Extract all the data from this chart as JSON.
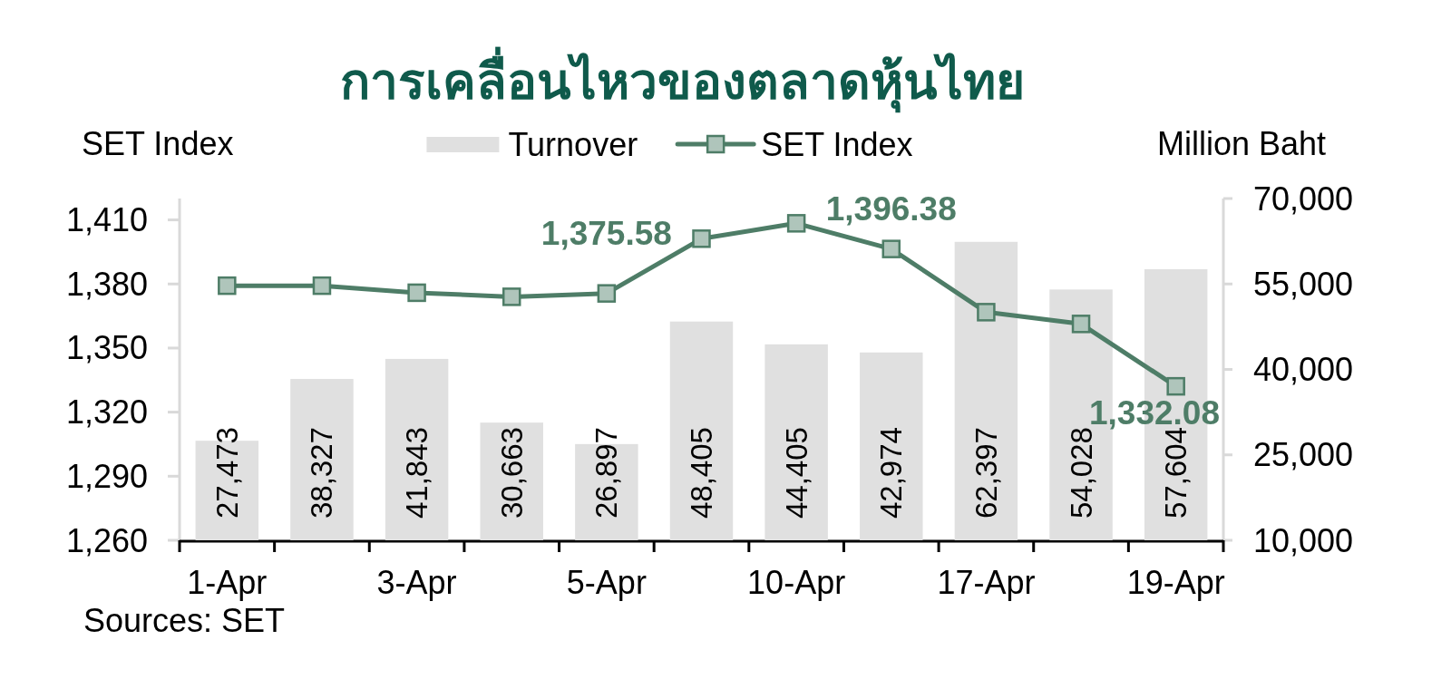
{
  "chart_data": {
    "type": "bar",
    "title": "การเคลื่อนไหวของตลาดหุ้นไทย",
    "ylabel": "SET Index",
    "y2label": "Million Baht",
    "categories": [
      "1-Apr",
      null,
      "3-Apr",
      null,
      "5-Apr",
      null,
      "10-Apr",
      null,
      "17-Apr",
      null,
      "19-Apr"
    ],
    "series": [
      {
        "name": "Turnover",
        "axis": "y2",
        "color": "#e0e0e0",
        "values": [
          27473,
          38327,
          41843,
          30663,
          26897,
          48405,
          44405,
          42974,
          62397,
          54028,
          57604
        ],
        "value_labels": [
          "27,473",
          "38,327",
          "41,843",
          "30,663",
          "26,897",
          "48,405",
          "44,405",
          "42,974",
          "62,397",
          "54,028",
          "57,604"
        ]
      },
      {
        "name": "SET Index",
        "type": "line",
        "axis": "y",
        "color": "#4e7d67",
        "marker": "square",
        "line_style": "solid",
        "values": [
          1379.2,
          1379.2,
          1375.9,
          1374.0,
          1375.58,
          1401.2,
          1408.4,
          1396.38,
          1366.8,
          1361.3,
          1332.08
        ],
        "value_labels": [
          null,
          null,
          null,
          null,
          "1,375.58",
          null,
          null,
          "1,396.38",
          null,
          null,
          "1,332.08"
        ]
      }
    ],
    "ylim": [
      1260,
      1420
    ],
    "yticks": [
      {
        "value": 1260,
        "label": "1,260"
      },
      {
        "value": 1290,
        "label": "1,290"
      },
      {
        "value": 1320,
        "label": "1,320"
      },
      {
        "value": 1350,
        "label": "1,350"
      },
      {
        "value": 1380,
        "label": "1,380"
      },
      {
        "value": 1410,
        "label": "1,410"
      }
    ],
    "y2lim": [
      10000,
      70000
    ],
    "y2ticks": [
      {
        "value": 10000,
        "label": "10,000"
      },
      {
        "value": 25000,
        "label": "25,000"
      },
      {
        "value": 40000,
        "label": "40,000"
      },
      {
        "value": 55000,
        "label": "55,000"
      },
      {
        "value": 70000,
        "label": "70,000"
      }
    ],
    "legend": "top",
    "annotations": [
      "Sources: SET"
    ]
  }
}
